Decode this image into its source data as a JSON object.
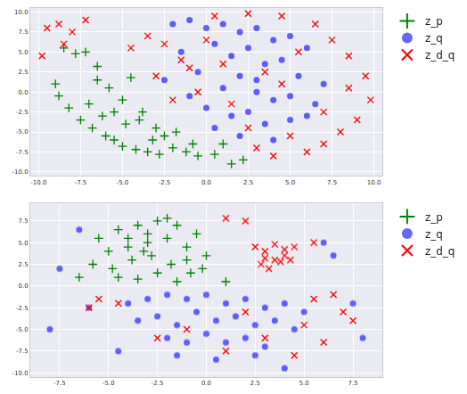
{
  "chart_data": [
    {
      "type": "scatter",
      "grid": true,
      "legend": "right",
      "xlim": [
        -10.5,
        10.5
      ],
      "xticks": [
        {
          "value": -10,
          "label": "-10.0"
        },
        -7.5,
        {
          "value": -5,
          "label": "-5.0"
        },
        -2.5,
        {
          "value": 0,
          "label": "0.0"
        },
        2.5,
        {
          "value": 5,
          "label": "5.0"
        },
        7.5,
        {
          "value": 10,
          "label": "10.0"
        }
      ],
      "ylim": [
        -10.5,
        10.5
      ],
      "yticks": [
        {
          "value": -10,
          "label": "-10.0"
        },
        -7.5,
        {
          "value": -5,
          "label": "-5.0"
        },
        -2.5,
        {
          "value": 0,
          "label": "0.0"
        },
        2.5,
        {
          "value": 5,
          "label": "5.0"
        },
        7.5,
        {
          "value": 10,
          "label": "10.0"
        }
      ],
      "series": [
        {
          "name": "z_p",
          "color": "green",
          "marker": "cross",
          "x": [
            -8.5,
            -7.8,
            -7.2,
            -6.5,
            -9.0,
            -8.8,
            -8.2,
            -7.5,
            -6.8,
            -6.0,
            -5.5,
            -5.0,
            -4.2,
            -3.5,
            -2.8,
            -2.0,
            -1.2,
            -0.5,
            0.5,
            1.5,
            -6.5,
            -5.8,
            -5.0,
            -4.5,
            -3.8,
            -3.0,
            -7.0,
            -6.2,
            -4.8,
            -3.2,
            -1.8,
            -0.8,
            -5.5,
            -4.0,
            -2.5,
            1.0,
            2.2
          ],
          "y": [
            5.5,
            4.8,
            5.0,
            3.2,
            1.0,
            -0.5,
            -2.0,
            -3.5,
            -4.5,
            -5.5,
            -6.0,
            -6.8,
            -7.2,
            -7.5,
            -7.8,
            -7.0,
            -7.5,
            -8.0,
            -7.8,
            -9.0,
            1.5,
            0.5,
            -1.0,
            1.8,
            -2.5,
            -4.5,
            -1.5,
            -3.0,
            -4.0,
            -6.0,
            -5.0,
            -6.5,
            -2.5,
            -3.5,
            -5.5,
            -6.5,
            -8.5
          ]
        },
        {
          "name": "z_q",
          "color": "blue",
          "marker": "circle",
          "x": [
            -2.0,
            -1.0,
            0.0,
            1.0,
            2.0,
            3.0,
            4.0,
            5.0,
            6.0,
            -1.5,
            0.5,
            1.5,
            2.5,
            3.5,
            4.5,
            5.5,
            -2.5,
            -0.5,
            1.0,
            2.0,
            3.0,
            4.0,
            5.0,
            6.5,
            0.0,
            1.5,
            2.5,
            3.5,
            5.0,
            -1.0,
            0.5,
            2.0,
            4.0,
            6.0,
            7.0,
            3.0
          ],
          "y": [
            8.5,
            9.0,
            8.0,
            8.5,
            7.5,
            8.0,
            6.5,
            7.0,
            5.5,
            5.0,
            6.0,
            4.5,
            5.5,
            3.5,
            4.0,
            2.0,
            1.5,
            2.5,
            0.5,
            2.0,
            0.0,
            -1.0,
            -0.5,
            -1.5,
            -2.0,
            -3.0,
            -2.5,
            -4.0,
            -3.5,
            -0.5,
            -4.5,
            -5.5,
            -6.0,
            -3.0,
            1.0,
            1.5
          ]
        },
        {
          "name": "z_d_q",
          "color": "red",
          "marker": "x",
          "x": [
            -9.5,
            -8.8,
            -8.0,
            -7.2,
            -9.8,
            -8.5,
            -4.5,
            -3.5,
            -2.5,
            -1.5,
            0.5,
            2.5,
            4.5,
            6.5,
            7.5,
            8.5,
            9.5,
            9.8,
            9.0,
            8.0,
            7.0,
            6.0,
            4.0,
            3.0,
            -1.0,
            1.0,
            3.5,
            5.5,
            -0.5,
            1.5,
            4.5,
            7.0,
            -2.0,
            2.5,
            8.5,
            5.0,
            -3.0,
            0.0
          ],
          "y": [
            8.0,
            8.5,
            7.5,
            9.0,
            4.5,
            6.0,
            5.5,
            7.0,
            6.0,
            4.0,
            9.5,
            9.8,
            9.5,
            8.5,
            6.5,
            4.5,
            2.0,
            -1.0,
            -3.5,
            -5.0,
            -6.5,
            -7.5,
            -8.0,
            -7.0,
            3.0,
            3.5,
            2.5,
            5.0,
            0.0,
            -1.5,
            1.0,
            -2.5,
            -1.0,
            -4.5,
            0.5,
            -5.5,
            2.0,
            6.5
          ]
        }
      ]
    },
    {
      "type": "scatter",
      "grid": true,
      "legend": "right",
      "xlim": [
        -9,
        9
      ],
      "xticks": [
        -7.5,
        {
          "value": -5,
          "label": "-5.0"
        },
        -2.5,
        {
          "value": 0,
          "label": "0.0"
        },
        2.5,
        {
          "value": 5,
          "label": "5.0"
        },
        7.5
      ],
      "ylim": [
        -10.5,
        9.5
      ],
      "yticks": [
        {
          "value": -10,
          "label": "-10.0"
        },
        -7.5,
        {
          "value": -5,
          "label": "-5.0"
        },
        -2.5,
        {
          "value": 0,
          "label": "0.0"
        },
        2.5,
        {
          "value": 5,
          "label": "5.0"
        },
        7.5
      ],
      "series": [
        {
          "name": "z_p",
          "color": "green",
          "marker": "cross",
          "x": [
            -5.5,
            -4.5,
            -3.5,
            -2.5,
            -1.5,
            -0.5,
            -5.0,
            -4.0,
            -3.0,
            -2.0,
            -1.0,
            0.0,
            -5.8,
            -4.8,
            -3.8,
            -2.8,
            -1.8,
            -0.8,
            -4.5,
            -3.5,
            -2.5,
            -1.5,
            -0.2,
            -3.0,
            -2.0,
            -4.0,
            -6.5,
            1.0,
            -1.0,
            -3.2
          ],
          "y": [
            5.5,
            6.5,
            7.0,
            7.5,
            7.0,
            6.0,
            4.0,
            4.5,
            5.0,
            5.5,
            4.5,
            3.5,
            2.5,
            2.0,
            3.0,
            3.5,
            2.5,
            1.5,
            1.0,
            0.8,
            1.5,
            0.5,
            2.0,
            6.0,
            7.8,
            5.5,
            1.0,
            0.5,
            3.0,
            4.0
          ]
        },
        {
          "name": "z_q",
          "color": "blue",
          "marker": "circle",
          "x": [
            -4.0,
            -3.0,
            -2.0,
            -1.0,
            0.0,
            1.0,
            2.0,
            3.0,
            4.0,
            5.0,
            -3.5,
            -2.5,
            -1.5,
            -0.5,
            0.5,
            1.5,
            2.5,
            3.5,
            4.5,
            -2.0,
            -1.0,
            0.0,
            1.0,
            2.0,
            3.0,
            -1.5,
            0.5,
            2.5,
            -6.0,
            -7.5,
            -8.0,
            6.5,
            7.5,
            8.0,
            -6.5,
            4.0,
            6.0,
            -4.5
          ],
          "y": [
            -2.0,
            -1.5,
            -1.0,
            -1.5,
            -1.0,
            -2.0,
            -1.5,
            -2.5,
            -2.0,
            -3.0,
            -4.0,
            -3.5,
            -4.5,
            -3.0,
            -4.0,
            -3.5,
            -4.5,
            -4.0,
            -5.0,
            -6.0,
            -6.5,
            -5.5,
            -6.5,
            -6.0,
            -7.0,
            -8.0,
            -8.5,
            -8.0,
            -2.5,
            2.0,
            -5.0,
            3.5,
            -2.0,
            -6.0,
            6.5,
            -9.5,
            5.0,
            -7.5
          ]
        },
        {
          "name": "z_d_q",
          "color": "red",
          "marker": "x",
          "x": [
            2.5,
            3.0,
            3.5,
            4.0,
            4.5,
            3.0,
            3.5,
            4.0,
            2.8,
            3.8,
            4.3,
            3.2,
            5.5,
            2.0,
            1.0,
            -5.5,
            -4.5,
            -6.0,
            6.5,
            7.0,
            5.0,
            3.0,
            -1.0,
            1.0,
            4.5,
            6.0,
            -2.5,
            2.0,
            5.5,
            7.5
          ],
          "y": [
            4.5,
            4.0,
            4.8,
            4.2,
            4.5,
            3.2,
            3.0,
            3.5,
            2.5,
            2.8,
            3.0,
            2.0,
            5.0,
            7.5,
            7.8,
            -1.5,
            -2.0,
            -2.5,
            -1.0,
            -3.0,
            -4.5,
            -6.0,
            -5.0,
            -7.5,
            -8.0,
            -6.5,
            -6.0,
            -3.0,
            -1.5,
            -4.0
          ]
        }
      ]
    }
  ]
}
